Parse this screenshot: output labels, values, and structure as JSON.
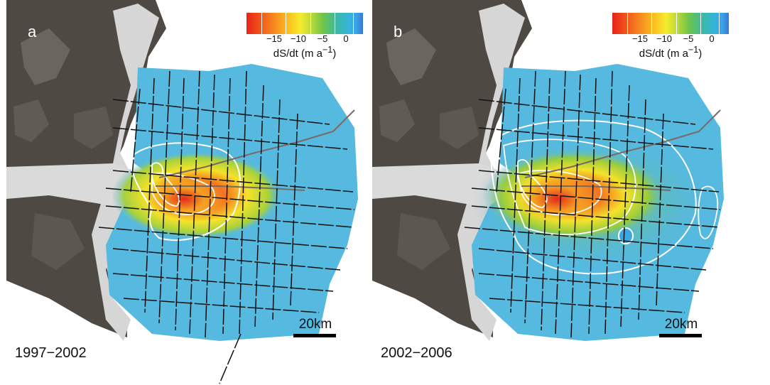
{
  "colorbar": {
    "ticks": [
      "−15",
      "−10",
      "−5",
      "0"
    ],
    "tick_values": [
      -15,
      -10,
      -5,
      0
    ],
    "range": [
      -20,
      3
    ],
    "unit_prefix": "dS/dt (m a",
    "unit_exp": "−1",
    "unit_suffix": ")",
    "colors": [
      "#e8221c",
      "#f68a1f",
      "#f6eb2c",
      "#6cc44a",
      "#35b4dd",
      "#3a78d6"
    ]
  },
  "panels": [
    {
      "letter": "a",
      "period": "1997−2002",
      "scale_label": "20km"
    },
    {
      "letter": "b",
      "period": "2002−2006",
      "scale_label": "20km"
    }
  ],
  "colors": {
    "background_blue": "#56b9df",
    "rock": "#4f4944",
    "ice": "#d4d4d4",
    "contour": "#ffffff",
    "flight_line": "#111111",
    "flowline": "#7a6a66"
  }
}
